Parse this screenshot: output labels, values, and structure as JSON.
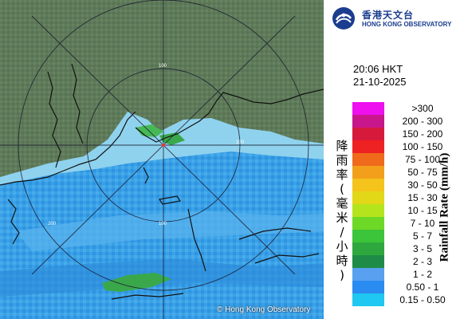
{
  "header": {
    "logo_cn": "香港天文台",
    "logo_en": "HONG KONG OBSERVATORY"
  },
  "timestamp": {
    "time": "20:06 HKT",
    "date": "21-10-2025"
  },
  "legend": {
    "title_cn": "降雨率(毫米/小時)",
    "title_en": "Rainfall Rate (mm/h)",
    "items": [
      {
        "label": ">300",
        "color": "#ee10ee"
      },
      {
        "label": "200 - 300",
        "color": "#c8178c"
      },
      {
        "label": "150 - 200",
        "color": "#d61a3c"
      },
      {
        "label": "100 - 150",
        "color": "#ee2222"
      },
      {
        "label": "75 - 100",
        "color": "#f06a1c"
      },
      {
        "label": "50 - 75",
        "color": "#f2a01c"
      },
      {
        "label": "30 - 50",
        "color": "#f4c41c"
      },
      {
        "label": "15 - 30",
        "color": "#e2d818"
      },
      {
        "label": "10 - 15",
        "color": "#b4e41c"
      },
      {
        "label": "7 - 10",
        "color": "#6ed826"
      },
      {
        "label": "5 - 7",
        "color": "#3cc43a"
      },
      {
        "label": "3 - 5",
        "color": "#2ea83e"
      },
      {
        "label": "2 - 3",
        "color": "#1e8c48"
      },
      {
        "label": "1 - 2",
        "color": "#5aa0f0"
      },
      {
        "label": "0.50 - 1",
        "color": "#2a8cf0"
      },
      {
        "label": "0.15 - 0.50",
        "color": "#1ec8f0"
      }
    ]
  },
  "radar": {
    "ring_labels": [
      "100",
      "100",
      "100",
      "200"
    ],
    "copyright": "© Hong Kong Observatory"
  }
}
